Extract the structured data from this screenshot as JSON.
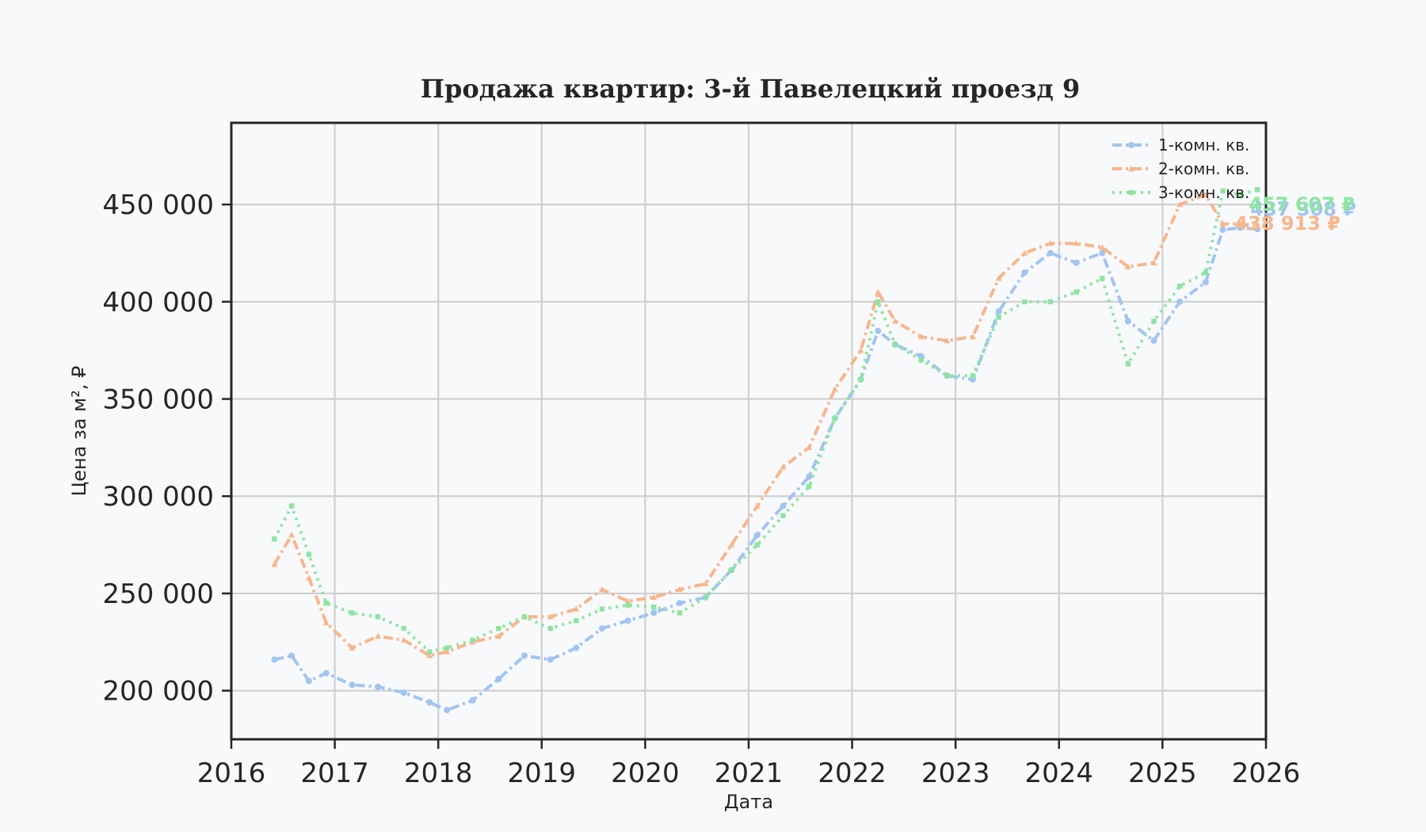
{
  "chart_data": {
    "type": "line",
    "title": "Продажа квартир: 3-й Павелецкий проезд 9",
    "xlabel": "Дата",
    "ylabel": "Цена за м², ₽",
    "xlim": [
      "2016-01-01",
      "2026-01-01"
    ],
    "ylim": [
      175000,
      492000
    ],
    "x_ticks": [
      2016,
      2017,
      2018,
      2019,
      2020,
      2021,
      2022,
      2023,
      2024,
      2025,
      2026
    ],
    "x_tick_labels": [
      "2016",
      "2017",
      "2018",
      "2019",
      "2020",
      "2021",
      "2022",
      "2023",
      "2024",
      "2025",
      "2026"
    ],
    "y_ticks": [
      200000,
      250000,
      300000,
      350000,
      400000,
      450000
    ],
    "y_tick_labels": [
      "200 000",
      "250 000",
      "300 000",
      "350 000",
      "400 000",
      "450 000"
    ],
    "grid": true,
    "legend_position": "top-right",
    "series": [
      {
        "name": "1-комн. кв.",
        "color": "#a1c4f0",
        "line_style": "dashdot",
        "marker": "circle",
        "end_label": "437 308 ₽",
        "x": [
          "2016-06",
          "2016-08",
          "2016-10",
          "2016-12",
          "2017-03",
          "2017-06",
          "2017-09",
          "2017-12",
          "2018-02",
          "2018-05",
          "2018-08",
          "2018-11",
          "2019-02",
          "2019-05",
          "2019-08",
          "2019-11",
          "2020-02",
          "2020-05",
          "2020-08",
          "2020-11",
          "2021-02",
          "2021-05",
          "2021-08",
          "2021-11",
          "2022-02",
          "2022-04",
          "2022-06",
          "2022-09",
          "2022-12",
          "2023-03",
          "2023-06",
          "2023-09",
          "2023-12",
          "2024-03",
          "2024-06",
          "2024-09",
          "2024-12",
          "2025-03",
          "2025-06",
          "2025-08",
          "2025-10",
          "2025-12"
        ],
        "y": [
          216000,
          218000,
          205000,
          209000,
          203000,
          202000,
          199000,
          194000,
          190000,
          195000,
          206000,
          218000,
          216000,
          222000,
          232000,
          236000,
          240000,
          245000,
          248000,
          262000,
          280000,
          295000,
          310000,
          340000,
          360000,
          385000,
          378000,
          372000,
          362000,
          360000,
          395000,
          415000,
          425000,
          420000,
          425000,
          390000,
          380000,
          400000,
          410000,
          437000,
          438000,
          437308
        ]
      },
      {
        "name": "2-комн. кв.",
        "color": "#f7b68b",
        "line_style": "dashdot",
        "marker": "triangle",
        "end_label": "438 913 ₽",
        "x": [
          "2016-06",
          "2016-08",
          "2016-10",
          "2016-12",
          "2017-03",
          "2017-06",
          "2017-09",
          "2017-12",
          "2018-02",
          "2018-05",
          "2018-08",
          "2018-11",
          "2019-02",
          "2019-05",
          "2019-08",
          "2019-11",
          "2020-02",
          "2020-05",
          "2020-08",
          "2020-11",
          "2021-02",
          "2021-05",
          "2021-08",
          "2021-11",
          "2022-02",
          "2022-04",
          "2022-06",
          "2022-09",
          "2022-12",
          "2023-03",
          "2023-06",
          "2023-09",
          "2023-12",
          "2024-03",
          "2024-06",
          "2024-09",
          "2024-12",
          "2025-03",
          "2025-06",
          "2025-08",
          "2025-10",
          "2025-12"
        ],
        "y": [
          265000,
          280000,
          258000,
          235000,
          222000,
          228000,
          226000,
          218000,
          220000,
          225000,
          228000,
          238000,
          238000,
          242000,
          252000,
          246000,
          248000,
          252000,
          255000,
          275000,
          295000,
          315000,
          325000,
          355000,
          375000,
          405000,
          390000,
          382000,
          380000,
          382000,
          412000,
          425000,
          430000,
          430000,
          428000,
          418000,
          420000,
          450000,
          455000,
          440000,
          440000,
          438913
        ]
      },
      {
        "name": "3-комн. кв.",
        "color": "#8de5a1",
        "line_style": "dotted",
        "marker": "square",
        "end_label": "457 607 ₽",
        "x": [
          "2016-06",
          "2016-08",
          "2016-10",
          "2016-12",
          "2017-03",
          "2017-06",
          "2017-09",
          "2017-12",
          "2018-02",
          "2018-05",
          "2018-08",
          "2018-11",
          "2019-02",
          "2019-05",
          "2019-08",
          "2019-11",
          "2020-02",
          "2020-05",
          "2020-08",
          "2020-11",
          "2021-02",
          "2021-05",
          "2021-08",
          "2021-11",
          "2022-02",
          "2022-04",
          "2022-06",
          "2022-09",
          "2022-12",
          "2023-03",
          "2023-06",
          "2023-09",
          "2023-12",
          "2024-03",
          "2024-06",
          "2024-09",
          "2024-12",
          "2025-03",
          "2025-06",
          "2025-08",
          "2025-10",
          "2025-12"
        ],
        "y": [
          278000,
          295000,
          270000,
          245000,
          240000,
          238000,
          232000,
          220000,
          222000,
          226000,
          232000,
          238000,
          232000,
          236000,
          242000,
          244000,
          243000,
          240000,
          248000,
          262000,
          275000,
          290000,
          305000,
          340000,
          360000,
          400000,
          378000,
          370000,
          362000,
          362000,
          392000,
          400000,
          400000,
          405000,
          412000,
          368000,
          390000,
          408000,
          415000,
          457000,
          455000,
          457607
        ]
      }
    ]
  }
}
